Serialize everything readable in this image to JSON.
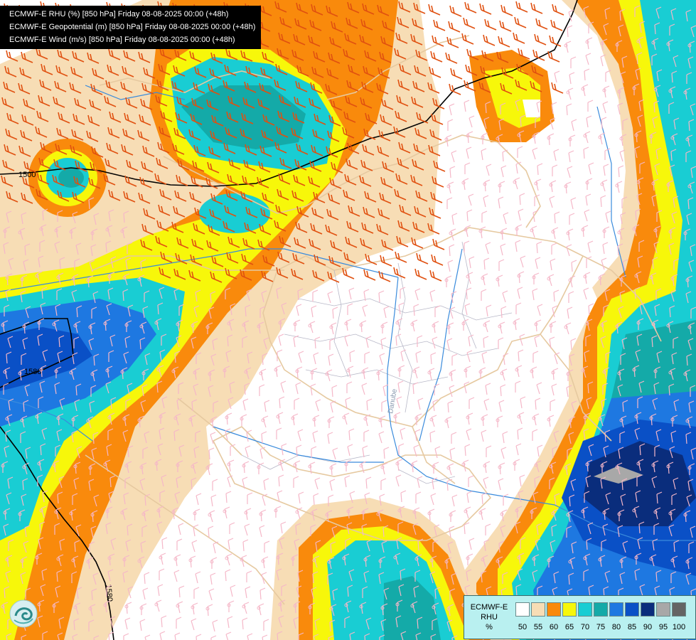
{
  "header": {
    "lines": [
      "ECMWF-E RHU (%) [850 hPa] Friday 08-08-2025 00:00 (+48h)",
      "ECMWF-E Geopotential (m) [850 hPa] Friday 08-08-2025 00:00 (+48h)",
      "ECMWF-E Wind (m/s) [850 hPa] Friday 08-08-2025 00:00 (+48h)"
    ]
  },
  "contours": {
    "labels": [
      "1580",
      "1580",
      "1580"
    ],
    "partial_label": "1500"
  },
  "map": {
    "river_label": "Danube"
  },
  "legend": {
    "model": "ECMWF-E",
    "variable": "RHU",
    "unit": "%",
    "colors": [
      "#ffffff",
      "#f7ddb5",
      "#f98a0c",
      "#f7f70a",
      "#19cdd3",
      "#14aaa8",
      "#1e78e1",
      "#0a50c6",
      "#0a2d7c",
      "#a8a8a8",
      "#646464"
    ],
    "ticks": [
      "50",
      "55",
      "60",
      "65",
      "70",
      "75",
      "80",
      "85",
      "90",
      "95",
      "100"
    ]
  },
  "colors": {
    "border": "#e6c9a0",
    "river": "#3a8bdc",
    "admin": "#b8b8c8",
    "geopotential": "#000000",
    "wind_dry": "#f5b7c8",
    "wind_moist": "#e05010"
  }
}
